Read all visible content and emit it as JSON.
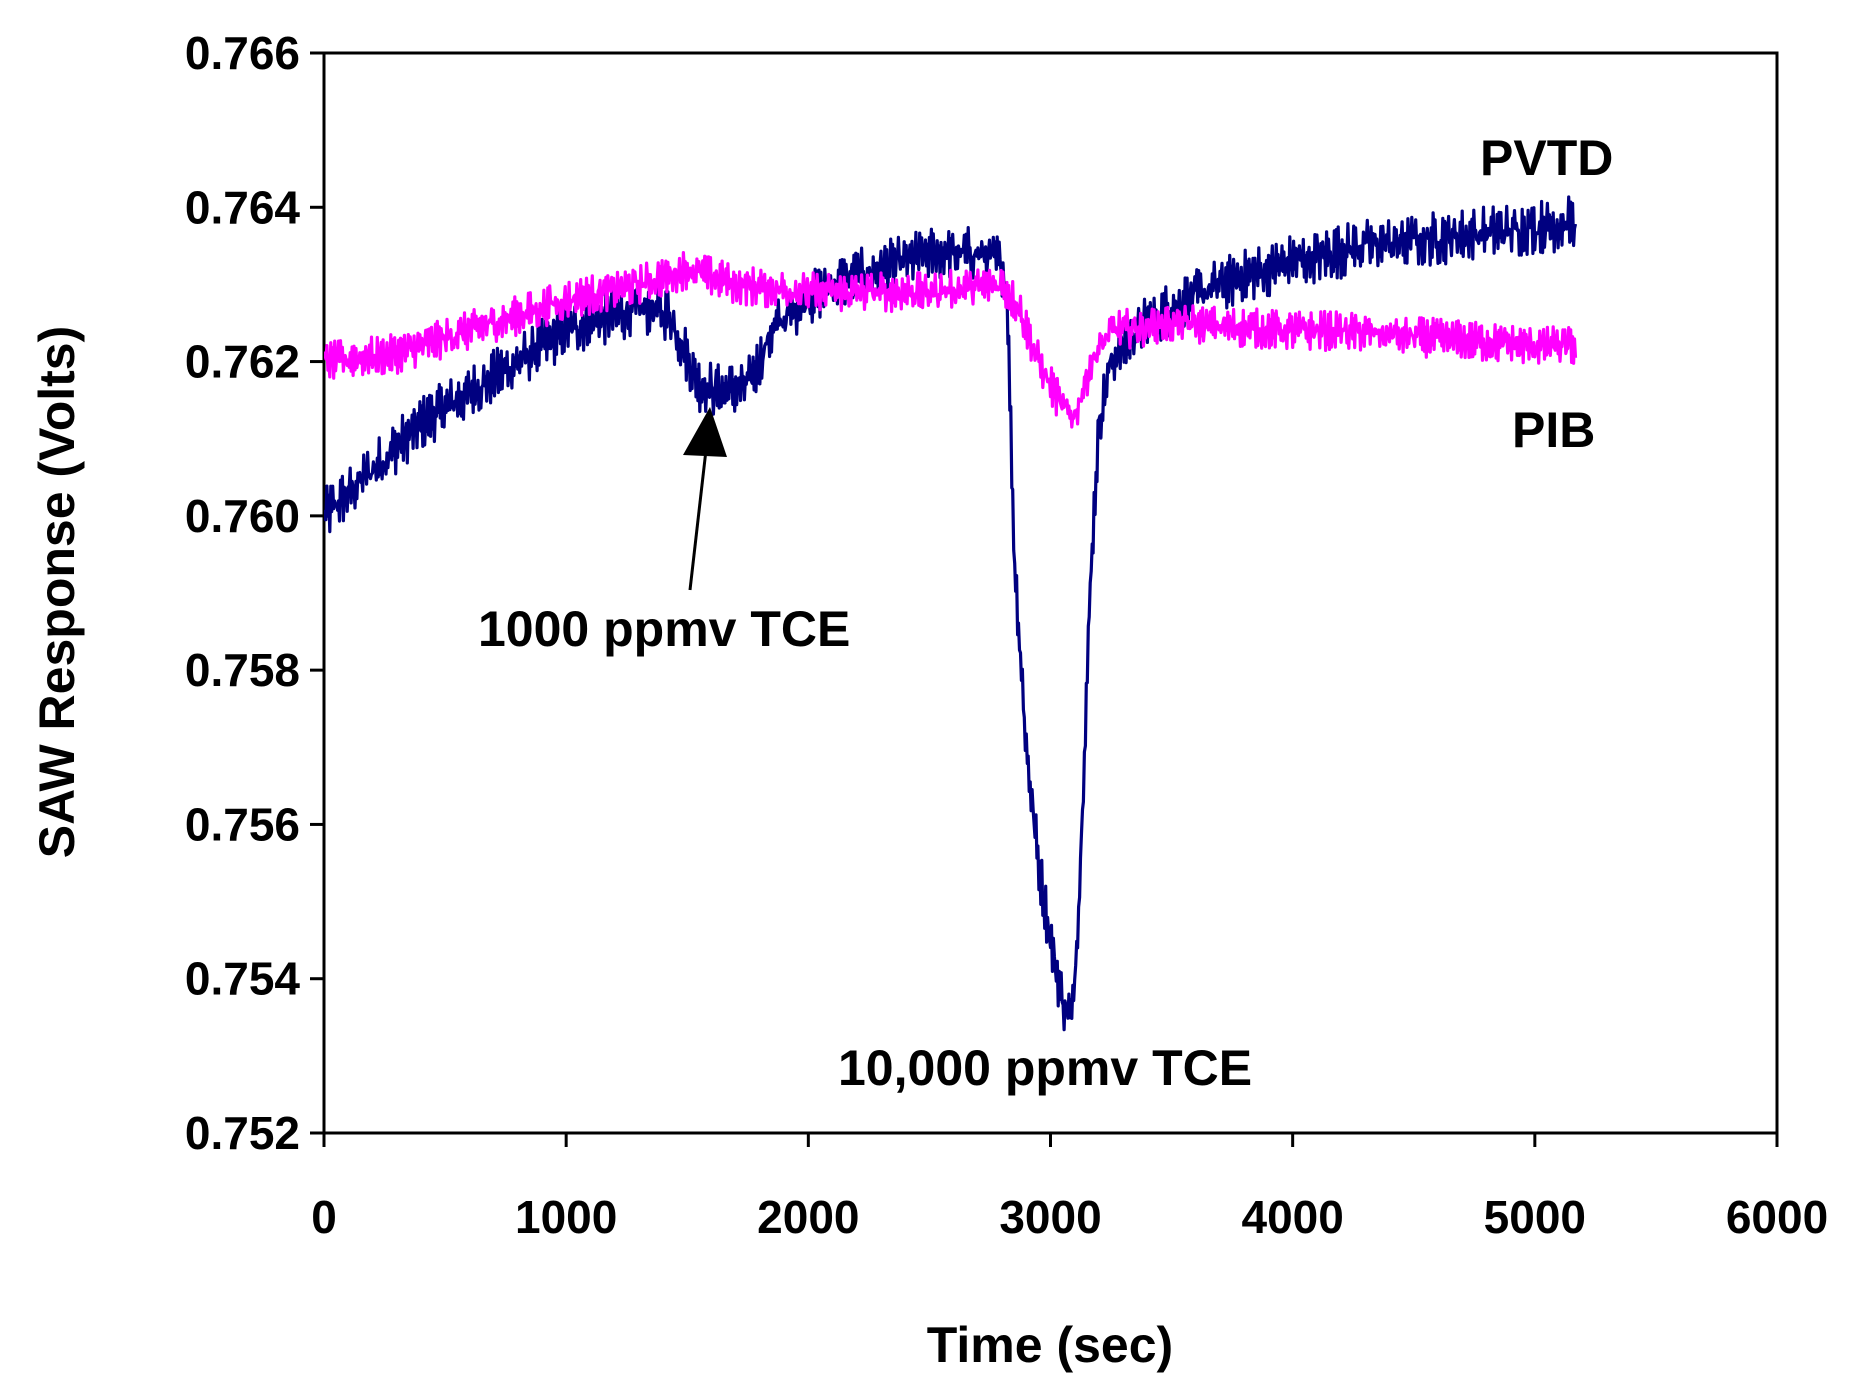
{
  "chart_data": {
    "type": "line",
    "title": "",
    "xlabel": "Time (sec)",
    "ylabel": "SAW Response (Volts)",
    "xlim": [
      0,
      6000
    ],
    "ylim": [
      0.752,
      0.766
    ],
    "x_ticks": [
      0,
      1000,
      2000,
      3000,
      4000,
      5000,
      6000
    ],
    "x_tick_labels": [
      "0",
      "1000",
      "2000",
      "3000",
      "4000",
      "5000",
      "6000"
    ],
    "y_ticks": [
      0.752,
      0.754,
      0.756,
      0.758,
      0.76,
      0.762,
      0.764,
      0.766
    ],
    "y_tick_labels": [
      "0.752",
      "0.754",
      "0.756",
      "0.758",
      "0.760",
      "0.762",
      "0.764",
      "0.766"
    ],
    "grid": false,
    "series": [
      {
        "name": "PVTD",
        "color": "#000080",
        "noise": 0.00022,
        "points": [
          [
            0,
            0.76
          ],
          [
            200,
            0.7606
          ],
          [
            400,
            0.7612
          ],
          [
            600,
            0.7616
          ],
          [
            800,
            0.762
          ],
          [
            1000,
            0.7624
          ],
          [
            1200,
            0.7626
          ],
          [
            1350,
            0.7627
          ],
          [
            1430,
            0.7626
          ],
          [
            1480,
            0.7622
          ],
          [
            1550,
            0.7617
          ],
          [
            1650,
            0.7616
          ],
          [
            1750,
            0.7617
          ],
          [
            1800,
            0.762
          ],
          [
            1850,
            0.7624
          ],
          [
            1950,
            0.7627
          ],
          [
            2100,
            0.763
          ],
          [
            2300,
            0.7632
          ],
          [
            2500,
            0.7634
          ],
          [
            2700,
            0.7634
          ],
          [
            2790,
            0.7633
          ],
          [
            2820,
            0.763
          ],
          [
            2850,
            0.7595
          ],
          [
            2900,
            0.757
          ],
          [
            2950,
            0.7555
          ],
          [
            3000,
            0.7545
          ],
          [
            3050,
            0.7537
          ],
          [
            3090,
            0.7535
          ],
          [
            3120,
            0.7552
          ],
          [
            3140,
            0.757
          ],
          [
            3170,
            0.7595
          ],
          [
            3200,
            0.7612
          ],
          [
            3250,
            0.762
          ],
          [
            3350,
            0.7624
          ],
          [
            3500,
            0.7627
          ],
          [
            3700,
            0.763
          ],
          [
            4000,
            0.7633
          ],
          [
            4300,
            0.7635
          ],
          [
            4600,
            0.7636
          ],
          [
            4900,
            0.7637
          ],
          [
            5170,
            0.7638
          ]
        ]
      },
      {
        "name": "PIB",
        "color": "#ff00ff",
        "noise": 0.00016,
        "points": [
          [
            0,
            0.762
          ],
          [
            300,
            0.7621
          ],
          [
            500,
            0.7623
          ],
          [
            800,
            0.7626
          ],
          [
            1000,
            0.7628
          ],
          [
            1300,
            0.763
          ],
          [
            1500,
            0.7632
          ],
          [
            1700,
            0.763
          ],
          [
            2000,
            0.7629
          ],
          [
            2500,
            0.7629
          ],
          [
            2800,
            0.763
          ],
          [
            2870,
            0.7627
          ],
          [
            2950,
            0.762
          ],
          [
            3050,
            0.7614
          ],
          [
            3100,
            0.7613
          ],
          [
            3170,
            0.762
          ],
          [
            3250,
            0.7624
          ],
          [
            3500,
            0.7625
          ],
          [
            4000,
            0.7624
          ],
          [
            4200,
            0.7624
          ],
          [
            4600,
            0.7623
          ],
          [
            5000,
            0.7622
          ],
          [
            5170,
            0.7622
          ]
        ]
      }
    ],
    "annotations": [
      {
        "text": "PVTD",
        "series": "PVTD",
        "near": [
          5200,
          0.7648
        ]
      },
      {
        "text": "PIB",
        "series": "PIB",
        "near": [
          5100,
          0.7611
        ]
      },
      {
        "text": "1000 ppmv TCE",
        "near": [
          1600,
          0.7586
        ],
        "arrow_to": [
          1600,
          0.7615
        ]
      },
      {
        "text": "10,000 ppmv TCE",
        "near": [
          3100,
          0.753
        ]
      }
    ]
  }
}
